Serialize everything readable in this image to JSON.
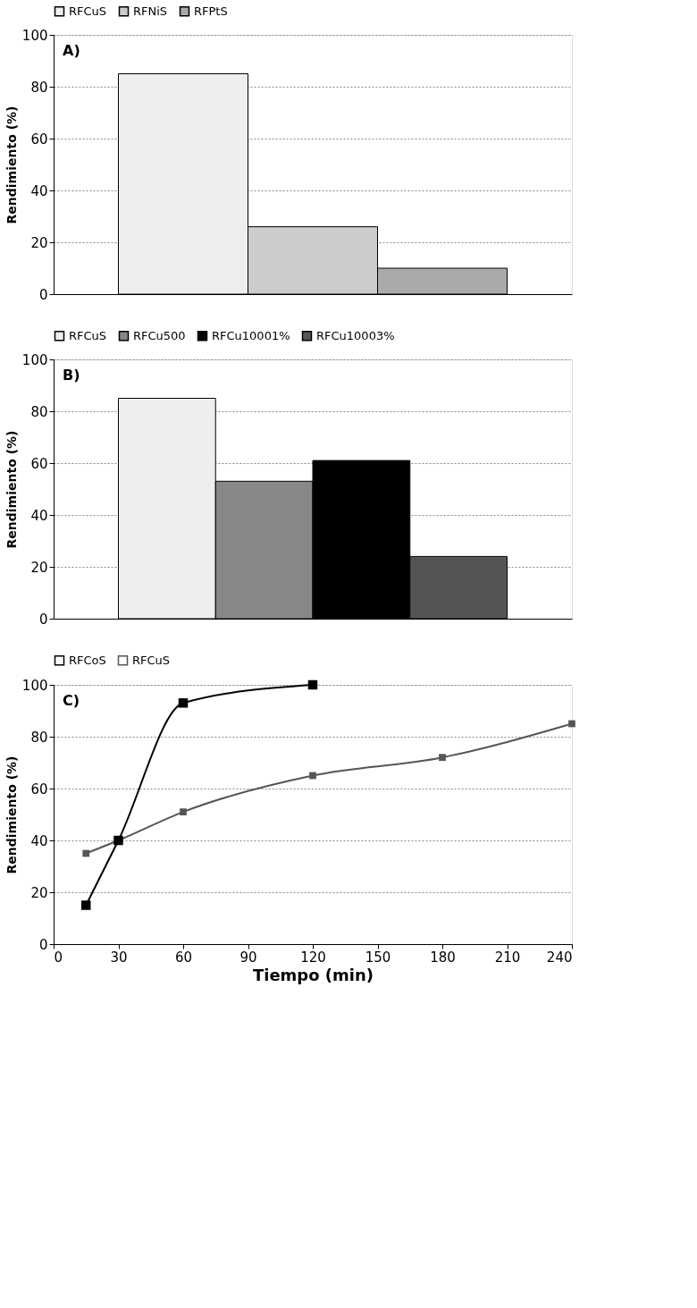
{
  "chart_data": [
    {
      "type": "bar",
      "categories": [
        null
      ],
      "ylabel": "Rendimiento (%)",
      "ylim": [
        0,
        100
      ],
      "yticks": [
        0,
        20,
        40,
        60,
        80,
        100
      ],
      "grid": "y",
      "legend": "top",
      "tick_labels": "y",
      "annotations": [
        "A)"
      ],
      "series": [
        {
          "name": "RFCuS",
          "color": "#eeeeee",
          "values": [
            85
          ]
        },
        {
          "name": "RFNiS",
          "color": "#cccccc",
          "values": [
            26
          ]
        },
        {
          "name": "RFPtS",
          "color": "#aaaaaa",
          "values": [
            10
          ]
        }
      ]
    },
    {
      "type": "bar",
      "categories": [
        null
      ],
      "ylabel": "Rendimiento (%)",
      "ylim": [
        0,
        100
      ],
      "yticks": [
        0,
        20,
        40,
        60,
        80,
        100
      ],
      "grid": "y",
      "legend": "top",
      "tick_labels": "y",
      "annotations": [
        "B)"
      ],
      "series": [
        {
          "name": "RFCuS",
          "color": "#eeeeee",
          "values": [
            85
          ]
        },
        {
          "name": "RFCu500",
          "color": "#888888",
          "values": [
            53
          ]
        },
        {
          "name": "RFCu10001%",
          "color": "#000000",
          "values": [
            61
          ]
        },
        {
          "name": "RFCu10003%",
          "color": "#555555",
          "values": [
            24
          ]
        }
      ]
    },
    {
      "type": "line",
      "xlabel": "Tiempo (min)",
      "ylabel": "Rendimiento (%)",
      "xlim": [
        0,
        240
      ],
      "xticks": [
        0,
        30,
        60,
        90,
        120,
        150,
        180,
        210,
        240
      ],
      "ylim": [
        0,
        100
      ],
      "yticks": [
        0,
        20,
        40,
        60,
        80,
        100
      ],
      "grid": "y",
      "legend": "top",
      "marker": "square",
      "line_style": "solid",
      "annotations": [
        "C)"
      ],
      "series": [
        {
          "name": "RFCoS",
          "color": "#000000",
          "x": [
            15,
            30,
            60,
            120
          ],
          "values": [
            15,
            40,
            93,
            100
          ]
        },
        {
          "name": "RFCuS",
          "color": "#555555",
          "x": [
            15,
            30,
            60,
            120,
            180,
            240
          ],
          "values": [
            35,
            40,
            51,
            65,
            72,
            85
          ]
        }
      ]
    }
  ]
}
